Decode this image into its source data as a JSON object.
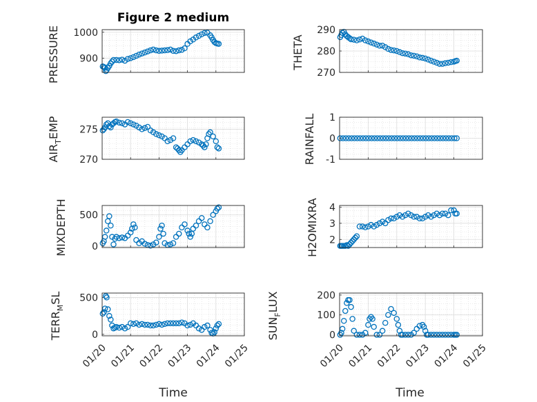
{
  "figure": {
    "title": "Figure 2 medium",
    "marker_color": "#0072BD"
  },
  "chart_data": [
    {
      "type": "scatter",
      "title": "Figure 2 medium",
      "ylabel": "PRESSURE",
      "ylim": [
        845,
        1010
      ],
      "yticks": [
        900,
        1000
      ],
      "xlim": [
        0,
        5
      ],
      "x": [
        0.02,
        0.06,
        0.1,
        0.13,
        0.16,
        0.2,
        0.25,
        0.3,
        0.35,
        0.4,
        0.5,
        0.6,
        0.7,
        0.8,
        0.9,
        1.0,
        1.1,
        1.2,
        1.3,
        1.4,
        1.5,
        1.6,
        1.7,
        1.8,
        1.9,
        2.0,
        2.1,
        2.2,
        2.3,
        2.4,
        2.5,
        2.6,
        2.7,
        2.8,
        2.9,
        3.0,
        3.1,
        3.2,
        3.3,
        3.4,
        3.5,
        3.6,
        3.7,
        3.8,
        3.85,
        3.9,
        3.95,
        4.0,
        4.05,
        4.1
      ],
      "y": [
        868,
        866,
        863,
        850,
        855,
        862,
        870,
        880,
        887,
        893,
        893,
        892,
        894,
        890,
        897,
        900,
        904,
        909,
        914,
        918,
        922,
        926,
        930,
        933,
        930,
        928,
        929,
        930,
        931,
        933,
        928,
        927,
        930,
        932,
        938,
        955,
        965,
        972,
        980,
        986,
        992,
        997,
        998,
        988,
        980,
        970,
        962,
        958,
        956,
        955
      ]
    },
    {
      "type": "scatter",
      "ylabel": "THETA",
      "ylim": [
        270,
        290
      ],
      "yticks": [
        270,
        280,
        290
      ],
      "xlim": [
        0,
        5
      ],
      "x": [
        0.02,
        0.06,
        0.1,
        0.15,
        0.2,
        0.25,
        0.3,
        0.35,
        0.4,
        0.5,
        0.6,
        0.7,
        0.8,
        0.9,
        1.0,
        1.1,
        1.2,
        1.3,
        1.4,
        1.5,
        1.6,
        1.7,
        1.8,
        1.9,
        2.0,
        2.1,
        2.2,
        2.3,
        2.4,
        2.5,
        2.6,
        2.7,
        2.8,
        2.9,
        3.0,
        3.1,
        3.2,
        3.3,
        3.4,
        3.5,
        3.6,
        3.7,
        3.8,
        3.9,
        4.0,
        4.05,
        4.1
      ],
      "y": [
        286.5,
        287.5,
        288.5,
        289.0,
        287.8,
        287.0,
        286.5,
        286.0,
        285.5,
        285.3,
        285.0,
        285.4,
        285.8,
        285.0,
        284.5,
        284.0,
        283.5,
        283.0,
        282.5,
        282.5,
        281.8,
        281.0,
        280.5,
        280.3,
        280.0,
        279.5,
        279.0,
        278.8,
        278.5,
        278.0,
        277.8,
        277.5,
        277.0,
        276.8,
        276.5,
        276.0,
        275.5,
        275.0,
        274.5,
        274.0,
        274.0,
        274.3,
        274.5,
        274.8,
        275.0,
        275.3,
        275.5
      ]
    },
    {
      "type": "scatter",
      "ylabel": "AIR_TEMP",
      "ylim": [
        270,
        277
      ],
      "yticks": [
        270,
        275
      ],
      "xlim": [
        0,
        5
      ],
      "x": [
        0.02,
        0.06,
        0.1,
        0.15,
        0.2,
        0.25,
        0.3,
        0.35,
        0.4,
        0.45,
        0.5,
        0.6,
        0.7,
        0.8,
        0.9,
        1.0,
        1.1,
        1.2,
        1.3,
        1.4,
        1.5,
        1.6,
        1.7,
        1.8,
        1.9,
        2.0,
        2.1,
        2.2,
        2.3,
        2.4,
        2.5,
        2.6,
        2.65,
        2.7,
        2.75,
        2.8,
        2.9,
        3.0,
        3.1,
        3.2,
        3.3,
        3.4,
        3.5,
        3.55,
        3.6,
        3.65,
        3.7,
        3.75,
        3.8,
        3.9,
        4.0,
        4.05,
        4.1
      ],
      "y": [
        274.8,
        275.0,
        275.3,
        275.8,
        276.0,
        275.5,
        275.3,
        275.8,
        276.0,
        276.2,
        276.3,
        276.1,
        276.0,
        275.8,
        276.2,
        276.0,
        275.8,
        275.6,
        275.3,
        275.0,
        275.2,
        275.4,
        274.8,
        274.5,
        274.2,
        274.0,
        273.8,
        273.5,
        273.0,
        273.2,
        273.5,
        272.0,
        271.8,
        271.5,
        271.2,
        271.5,
        272.0,
        272.5,
        273.0,
        273.2,
        273.0,
        272.8,
        272.5,
        272.3,
        272.0,
        272.5,
        273.5,
        274.2,
        274.5,
        273.8,
        273.0,
        272.0,
        271.8
      ]
    },
    {
      "type": "scatter",
      "ylabel": "RAINFALL",
      "ylim": [
        -1,
        1
      ],
      "yticks": [
        -1,
        0,
        1
      ],
      "xlim": [
        0,
        5
      ],
      "x": [
        0.02,
        0.12,
        0.22,
        0.32,
        0.42,
        0.52,
        0.62,
        0.72,
        0.82,
        0.92,
        1.02,
        1.12,
        1.22,
        1.32,
        1.42,
        1.52,
        1.62,
        1.72,
        1.82,
        1.92,
        2.02,
        2.12,
        2.22,
        2.32,
        2.42,
        2.52,
        2.62,
        2.72,
        2.82,
        2.92,
        3.02,
        3.12,
        3.22,
        3.32,
        3.42,
        3.52,
        3.62,
        3.72,
        3.82,
        3.92,
        4.02,
        4.1
      ],
      "y": [
        0,
        0,
        0,
        0,
        0,
        0,
        0,
        0,
        0,
        0,
        0,
        0,
        0,
        0,
        0,
        0,
        0,
        0,
        0,
        0,
        0,
        0,
        0,
        0,
        0,
        0,
        0,
        0,
        0,
        0,
        0,
        0,
        0,
        0,
        0,
        0,
        0,
        0,
        0,
        0,
        0,
        0
      ]
    },
    {
      "type": "scatter",
      "ylabel": "MIXDEPTH",
      "ylim": [
        -20,
        650
      ],
      "yticks": [
        0,
        500
      ],
      "xlim": [
        0,
        5
      ],
      "x": [
        0.02,
        0.06,
        0.1,
        0.15,
        0.2,
        0.25,
        0.3,
        0.35,
        0.4,
        0.45,
        0.5,
        0.6,
        0.7,
        0.8,
        0.9,
        1.0,
        1.05,
        1.1,
        1.15,
        1.2,
        1.3,
        1.4,
        1.5,
        1.6,
        1.7,
        1.8,
        1.9,
        2.0,
        2.05,
        2.1,
        2.15,
        2.2,
        2.3,
        2.4,
        2.5,
        2.6,
        2.7,
        2.8,
        2.9,
        3.0,
        3.05,
        3.1,
        3.15,
        3.2,
        3.3,
        3.4,
        3.5,
        3.6,
        3.7,
        3.8,
        3.9,
        4.0,
        4.05,
        4.1
      ],
      "y": [
        50,
        80,
        150,
        250,
        400,
        480,
        330,
        150,
        30,
        120,
        150,
        130,
        140,
        130,
        170,
        220,
        280,
        350,
        300,
        100,
        50,
        80,
        40,
        20,
        10,
        30,
        60,
        150,
        280,
        330,
        200,
        50,
        20,
        30,
        50,
        150,
        200,
        300,
        350,
        250,
        200,
        150,
        200,
        280,
        330,
        400,
        450,
        350,
        300,
        400,
        500,
        560,
        600,
        620
      ]
    },
    {
      "type": "scatter",
      "ylabel": "H2OMIXRA",
      "ylim": [
        1.5,
        4.1
      ],
      "yticks": [
        2,
        3,
        4
      ],
      "xlim": [
        0,
        5
      ],
      "x": [
        0.02,
        0.06,
        0.1,
        0.15,
        0.2,
        0.25,
        0.3,
        0.35,
        0.4,
        0.45,
        0.5,
        0.55,
        0.6,
        0.7,
        0.8,
        0.9,
        1.0,
        1.1,
        1.2,
        1.3,
        1.4,
        1.5,
        1.6,
        1.7,
        1.8,
        1.9,
        2.0,
        2.1,
        2.2,
        2.3,
        2.4,
        2.5,
        2.6,
        2.7,
        2.8,
        2.9,
        3.0,
        3.1,
        3.2,
        3.3,
        3.4,
        3.5,
        3.6,
        3.7,
        3.8,
        3.9,
        4.0,
        4.05,
        4.1
      ],
      "y": [
        1.6,
        1.6,
        1.6,
        1.6,
        1.6,
        1.65,
        1.6,
        1.7,
        1.8,
        1.9,
        2.0,
        2.1,
        2.2,
        2.8,
        2.8,
        2.75,
        2.8,
        2.9,
        2.8,
        2.9,
        3.0,
        3.1,
        3.0,
        3.2,
        3.3,
        3.3,
        3.4,
        3.5,
        3.4,
        3.5,
        3.6,
        3.5,
        3.4,
        3.4,
        3.3,
        3.3,
        3.4,
        3.5,
        3.4,
        3.5,
        3.6,
        3.5,
        3.6,
        3.6,
        3.5,
        3.8,
        3.8,
        3.6,
        3.6
      ]
    },
    {
      "type": "scatter",
      "ylabel": "TERR_MSL",
      "ylim": [
        -20,
        560
      ],
      "yticks": [
        0,
        500
      ],
      "xlim": [
        0,
        5
      ],
      "x": [
        0.02,
        0.06,
        0.1,
        0.13,
        0.16,
        0.2,
        0.25,
        0.3,
        0.35,
        0.4,
        0.45,
        0.5,
        0.6,
        0.7,
        0.8,
        0.9,
        1.0,
        1.1,
        1.2,
        1.3,
        1.4,
        1.5,
        1.6,
        1.7,
        1.8,
        1.9,
        2.0,
        2.1,
        2.2,
        2.3,
        2.4,
        2.5,
        2.6,
        2.7,
        2.8,
        2.9,
        3.0,
        3.1,
        3.2,
        3.3,
        3.4,
        3.5,
        3.6,
        3.7,
        3.8,
        3.85,
        3.9,
        3.95,
        4.0,
        4.05,
        4.1
      ],
      "y": [
        280,
        300,
        350,
        520,
        500,
        340,
        250,
        200,
        120,
        80,
        90,
        100,
        90,
        100,
        80,
        100,
        150,
        140,
        150,
        130,
        140,
        130,
        130,
        120,
        120,
        130,
        140,
        130,
        140,
        150,
        150,
        150,
        150,
        150,
        160,
        150,
        120,
        130,
        150,
        120,
        80,
        60,
        100,
        120,
        60,
        20,
        10,
        30,
        80,
        120,
        140
      ]
    },
    {
      "type": "scatter",
      "ylabel": "SUN_FLUX",
      "ylim": [
        -5,
        210
      ],
      "yticks": [
        0,
        100,
        200
      ],
      "xlim": [
        0,
        5
      ],
      "x": [
        0.02,
        0.06,
        0.1,
        0.15,
        0.2,
        0.25,
        0.3,
        0.35,
        0.4,
        0.45,
        0.5,
        0.6,
        0.7,
        0.8,
        0.9,
        1.0,
        1.05,
        1.1,
        1.15,
        1.2,
        1.3,
        1.4,
        1.5,
        1.6,
        1.7,
        1.8,
        1.9,
        2.0,
        2.05,
        2.1,
        2.15,
        2.2,
        2.3,
        2.4,
        2.5,
        2.6,
        2.7,
        2.8,
        2.9,
        2.95,
        3.0,
        3.05,
        3.1,
        3.2,
        3.3,
        3.4,
        3.5,
        3.6,
        3.7,
        3.8,
        3.9,
        4.0,
        4.05,
        4.1
      ],
      "y": [
        0,
        10,
        30,
        70,
        120,
        160,
        175,
        175,
        140,
        80,
        20,
        0,
        0,
        0,
        10,
        50,
        80,
        90,
        80,
        40,
        0,
        0,
        20,
        60,
        100,
        130,
        110,
        80,
        50,
        20,
        0,
        0,
        0,
        0,
        0,
        10,
        30,
        45,
        50,
        40,
        20,
        0,
        0,
        0,
        0,
        0,
        0,
        0,
        0,
        0,
        0,
        0,
        0,
        0
      ]
    }
  ],
  "axes_labels": {
    "xlabel": "Time",
    "xticklabels": [
      "01/20",
      "01/21",
      "01/22",
      "01/23",
      "01/24",
      "01/25"
    ],
    "ylabel_parts": {
      "pressure": "PRESSURE",
      "theta": "THETA",
      "air_a": "AIR",
      "air_sub": "T",
      "air_b": "EMP",
      "rainfall": "RAINFALL",
      "mixdepth": "MIXDEPTH",
      "h2o": "H2OMIXRA",
      "terr_a": "TERR",
      "terr_sub": "M",
      "terr_b": "SL",
      "sun_a": "SUN",
      "sun_sub": "F",
      "sun_b": "LUX"
    }
  }
}
